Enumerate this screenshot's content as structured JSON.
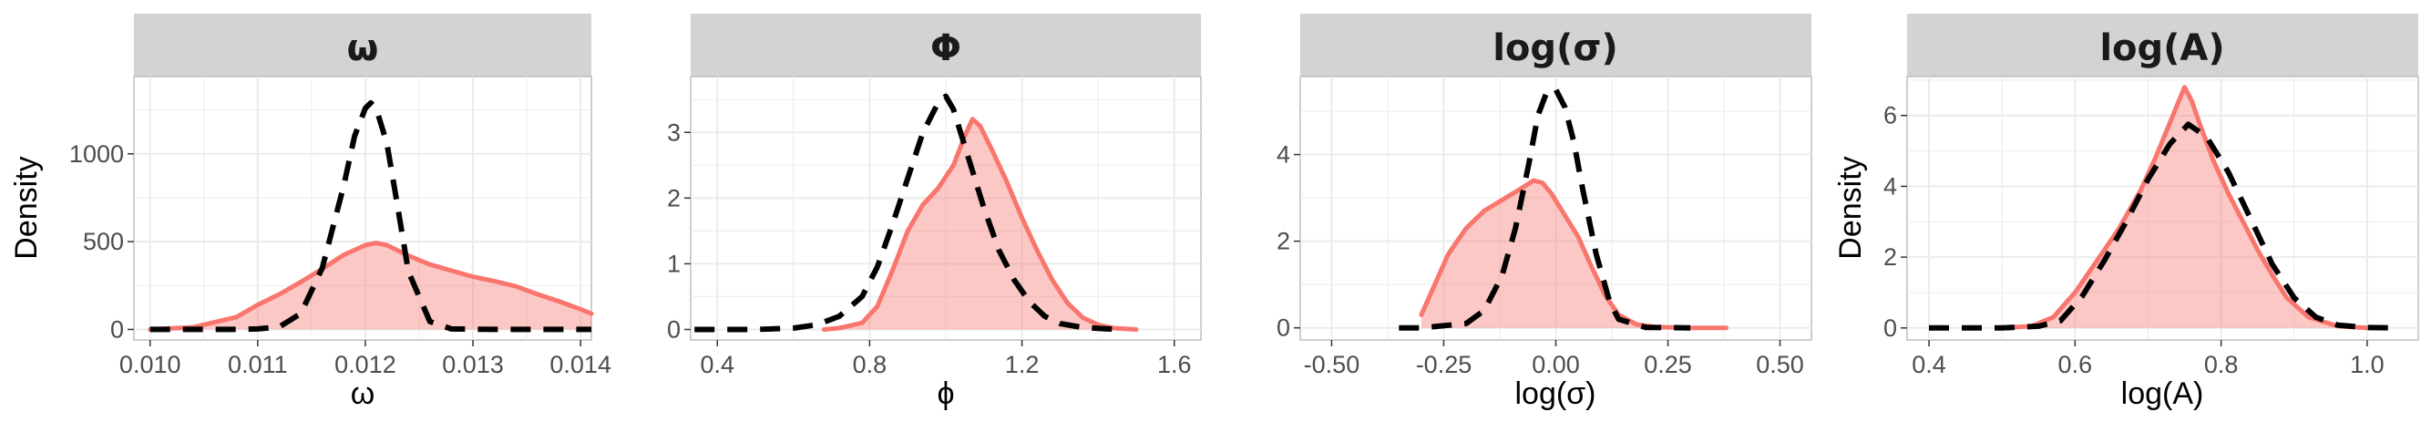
{
  "colors": {
    "posterior_line": "#F8766D",
    "posterior_fill": "#F8766D",
    "prior_line": "#000000",
    "strip_bg": "#D3D3D3",
    "grid": "#EBEBEB",
    "panel_border": "#BDBDBD"
  },
  "chart_data": [
    {
      "type": "area",
      "title": "ω",
      "xlabel": "ω",
      "ylabel": "Density",
      "xlim": [
        0.00985,
        0.0141
      ],
      "ylim": [
        -60,
        1440
      ],
      "xticks": [
        0.01,
        0.011,
        0.012,
        0.013,
        0.014
      ],
      "xtick_labels": [
        "0.010",
        "0.011",
        "0.012",
        "0.013",
        "0.014"
      ],
      "yticks": [
        0,
        500,
        1000
      ],
      "ytick_labels": [
        "0",
        "500",
        "1000"
      ],
      "grid": true,
      "series": [
        {
          "style": "solid-filled",
          "x": [
            0.01,
            0.0104,
            0.0108,
            0.011,
            0.0112,
            0.0114,
            0.0116,
            0.0118,
            0.012,
            0.0121,
            0.0122,
            0.0124,
            0.0126,
            0.0128,
            0.013,
            0.0132,
            0.0134,
            0.0136,
            0.0138,
            0.014,
            0.0141
          ],
          "y": [
            0,
            12,
            70,
            140,
            200,
            270,
            345,
            425,
            480,
            492,
            480,
            420,
            370,
            335,
            300,
            275,
            245,
            200,
            160,
            115,
            90
          ]
        },
        {
          "style": "dashed",
          "x": [
            0.01,
            0.0108,
            0.011,
            0.0112,
            0.0114,
            0.0116,
            0.0118,
            0.0119,
            0.012,
            0.01205,
            0.0121,
            0.0122,
            0.0123,
            0.0124,
            0.0126,
            0.0128,
            0.0132,
            0.0141
          ],
          "y": [
            0,
            0,
            3,
            15,
            90,
            350,
            820,
            1100,
            1260,
            1290,
            1260,
            1060,
            700,
            330,
            45,
            3,
            0,
            0
          ]
        }
      ]
    },
    {
      "type": "area",
      "title": "Φ",
      "xlabel": "ϕ",
      "ylabel": "",
      "xlim": [
        0.33,
        1.67
      ],
      "ylim": [
        -0.16,
        3.85
      ],
      "xticks": [
        0.4,
        0.8,
        1.2,
        1.6
      ],
      "xtick_labels": [
        "0.4",
        "0.8",
        "1.2",
        "1.6"
      ],
      "yticks": [
        0,
        1,
        2,
        3
      ],
      "ytick_labels": [
        "0",
        "1",
        "2",
        "3"
      ],
      "grid": true,
      "series": [
        {
          "style": "solid-filled",
          "x": [
            0.68,
            0.72,
            0.78,
            0.82,
            0.86,
            0.9,
            0.94,
            0.98,
            1.02,
            1.05,
            1.07,
            1.09,
            1.12,
            1.16,
            1.2,
            1.24,
            1.28,
            1.32,
            1.36,
            1.4,
            1.44,
            1.5
          ],
          "y": [
            0,
            0.02,
            0.1,
            0.35,
            0.9,
            1.5,
            1.9,
            2.15,
            2.5,
            2.95,
            3.2,
            3.1,
            2.75,
            2.25,
            1.7,
            1.2,
            0.75,
            0.4,
            0.18,
            0.07,
            0.02,
            0
          ]
        },
        {
          "style": "dashed",
          "x": [
            0.34,
            0.5,
            0.6,
            0.66,
            0.72,
            0.78,
            0.82,
            0.86,
            0.9,
            0.94,
            0.98,
            1.0,
            1.02,
            1.06,
            1.1,
            1.14,
            1.18,
            1.22,
            1.26,
            1.3,
            1.36,
            1.42,
            1.46
          ],
          "y": [
            0,
            0,
            0.02,
            0.07,
            0.2,
            0.5,
            0.95,
            1.6,
            2.3,
            3.0,
            3.45,
            3.55,
            3.35,
            2.6,
            1.85,
            1.2,
            0.75,
            0.42,
            0.2,
            0.09,
            0.03,
            0.01,
            0
          ]
        }
      ]
    },
    {
      "type": "area",
      "title": "log(σ)",
      "xlabel": "log(σ)",
      "ylabel": "",
      "xlim": [
        -0.57,
        0.57
      ],
      "ylim": [
        -0.28,
        5.8
      ],
      "xticks": [
        -0.5,
        -0.25,
        0,
        0.25,
        0.5
      ],
      "xtick_labels": [
        "-0.50",
        "-0.25",
        "0.00",
        "0.25",
        "0.50"
      ],
      "yticks": [
        0,
        2,
        4
      ],
      "ytick_labels": [
        "0",
        "2",
        "4"
      ],
      "grid": true,
      "series": [
        {
          "style": "solid-filled",
          "x": [
            -0.3,
            -0.27,
            -0.24,
            -0.2,
            -0.16,
            -0.12,
            -0.08,
            -0.05,
            -0.03,
            -0.01,
            0.02,
            0.05,
            0.08,
            0.11,
            0.14,
            0.18,
            0.22,
            0.26,
            0.3,
            0.34,
            0.38
          ],
          "y": [
            0.3,
            1.0,
            1.7,
            2.3,
            2.7,
            2.95,
            3.2,
            3.4,
            3.35,
            3.1,
            2.6,
            2.1,
            1.4,
            0.75,
            0.3,
            0.08,
            0.02,
            0.01,
            0,
            0,
            0
          ]
        },
        {
          "style": "dashed",
          "x": [
            -0.35,
            -0.3,
            -0.2,
            -0.16,
            -0.12,
            -0.09,
            -0.06,
            -0.04,
            -0.02,
            0.0,
            0.02,
            0.04,
            0.06,
            0.09,
            0.12,
            0.14,
            0.2,
            0.3
          ],
          "y": [
            0,
            0,
            0.1,
            0.4,
            1.2,
            2.3,
            3.8,
            4.9,
            5.45,
            5.5,
            5.1,
            4.3,
            3.2,
            1.7,
            0.6,
            0.2,
            0.01,
            0
          ]
        }
      ]
    },
    {
      "type": "area",
      "title": "log(A)",
      "xlabel": "log(A)",
      "ylabel": "Density",
      "xlim": [
        0.37,
        1.07
      ],
      "ylim": [
        -0.34,
        7.1
      ],
      "xticks": [
        0.4,
        0.6,
        0.8,
        1.0
      ],
      "xtick_labels": [
        "0.4",
        "0.6",
        "0.8",
        "1.0"
      ],
      "yticks": [
        0,
        2,
        4,
        6
      ],
      "ytick_labels": [
        "0",
        "2",
        "4",
        "6"
      ],
      "grid": true,
      "series": [
        {
          "style": "solid-filled",
          "x": [
            0.5,
            0.54,
            0.57,
            0.6,
            0.63,
            0.66,
            0.69,
            0.71,
            0.73,
            0.74,
            0.75,
            0.76,
            0.77,
            0.79,
            0.81,
            0.83,
            0.85,
            0.87,
            0.89,
            0.92,
            0.96,
            1.0
          ],
          "y": [
            0,
            0.05,
            0.3,
            1.0,
            1.9,
            2.8,
            3.9,
            4.8,
            5.8,
            6.3,
            6.8,
            6.4,
            5.8,
            4.7,
            3.8,
            3.0,
            2.2,
            1.5,
            0.85,
            0.3,
            0.05,
            0
          ]
        },
        {
          "style": "dashed",
          "x": [
            0.4,
            0.5,
            0.55,
            0.58,
            0.61,
            0.64,
            0.67,
            0.7,
            0.73,
            0.755,
            0.78,
            0.81,
            0.84,
            0.87,
            0.9,
            0.93,
            0.96,
            1.0,
            1.04
          ],
          "y": [
            0,
            0,
            0.05,
            0.2,
            0.9,
            1.9,
            3.0,
            4.2,
            5.2,
            5.75,
            5.4,
            4.4,
            3.1,
            1.8,
            0.85,
            0.3,
            0.08,
            0.01,
            0
          ]
        }
      ]
    }
  ]
}
